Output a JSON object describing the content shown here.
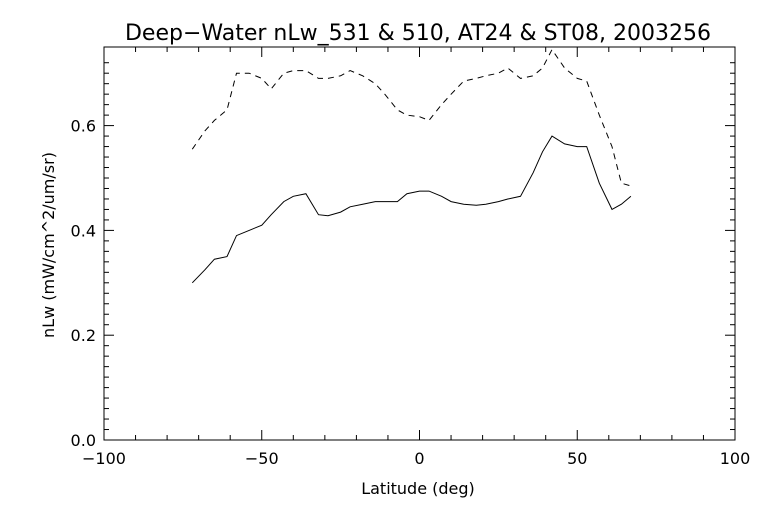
{
  "chart_data": {
    "type": "line",
    "title": "Deep−Water nLw_531 & 510, AT24 & ST08, 2003256",
    "xlabel": "Latitude (deg)",
    "ylabel": "nLw (mW/cm^2/um/sr)",
    "xlim": [
      -100,
      100
    ],
    "ylim": [
      0.0,
      0.75
    ],
    "xticks": [
      -100,
      -50,
      0,
      50,
      100
    ],
    "xtick_labels": [
      "−100",
      "−50",
      "0",
      "50",
      "100"
    ],
    "yticks": [
      0.0,
      0.2,
      0.4,
      0.6
    ],
    "ytick_labels": [
      "0.0",
      "0.2",
      "0.4",
      "0.6"
    ],
    "grid": false,
    "legend": "none",
    "series": [
      {
        "style": "dashed",
        "color": "#000000",
        "x": [
          -72,
          -68,
          -65,
          -61,
          -58,
          -54,
          -50,
          -47,
          -43,
          -40,
          -36,
          -32,
          -29,
          -25,
          -22,
          -18,
          -14,
          -11,
          -7,
          -4,
          0,
          3,
          7,
          10,
          14,
          18,
          21,
          25,
          28,
          32,
          36,
          39,
          42,
          46,
          50,
          53,
          57,
          61,
          64,
          67
        ],
        "y": [
          0.555,
          0.59,
          0.61,
          0.63,
          0.7,
          0.7,
          0.69,
          0.67,
          0.7,
          0.705,
          0.705,
          0.69,
          0.69,
          0.695,
          0.705,
          0.695,
          0.68,
          0.66,
          0.63,
          0.62,
          0.617,
          0.61,
          0.64,
          0.66,
          0.685,
          0.69,
          0.695,
          0.7,
          0.71,
          0.69,
          0.695,
          0.71,
          0.745,
          0.71,
          0.69,
          0.685,
          0.62,
          0.56,
          0.49,
          0.485
        ]
      },
      {
        "style": "solid",
        "color": "#000000",
        "x": [
          -72,
          -68,
          -65,
          -61,
          -58,
          -54,
          -50,
          -47,
          -43,
          -40,
          -36,
          -32,
          -29,
          -25,
          -22,
          -18,
          -14,
          -11,
          -7,
          -4,
          0,
          3,
          7,
          10,
          14,
          18,
          21,
          25,
          28,
          32,
          36,
          39,
          42,
          46,
          50,
          53,
          57,
          61,
          64,
          67
        ],
        "y": [
          0.3,
          0.325,
          0.345,
          0.35,
          0.39,
          0.4,
          0.41,
          0.43,
          0.455,
          0.465,
          0.47,
          0.43,
          0.428,
          0.435,
          0.445,
          0.45,
          0.455,
          0.455,
          0.455,
          0.47,
          0.475,
          0.475,
          0.465,
          0.455,
          0.45,
          0.448,
          0.45,
          0.455,
          0.46,
          0.465,
          0.51,
          0.55,
          0.58,
          0.565,
          0.56,
          0.56,
          0.49,
          0.44,
          0.45,
          0.465
        ]
      }
    ]
  }
}
